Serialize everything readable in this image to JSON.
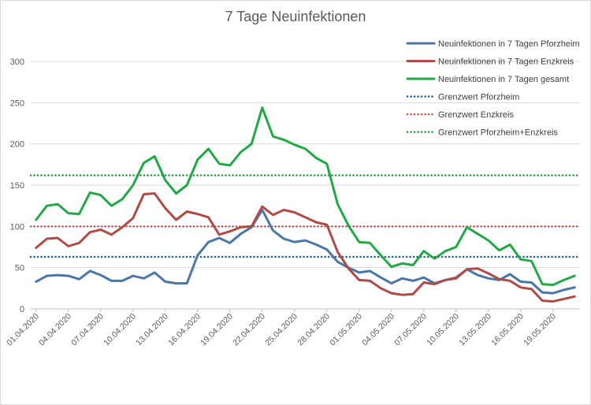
{
  "chart_data": {
    "type": "line",
    "title": "7 Tage Neuinfektionen",
    "ylim": [
      0,
      300
    ],
    "yticks": [
      0,
      50,
      100,
      150,
      200,
      250,
      300
    ],
    "grid": true,
    "legend_position": "top-right",
    "x": [
      "01.04.2020",
      "02.04.2020",
      "03.04.2020",
      "04.04.2020",
      "05.04.2020",
      "06.04.2020",
      "07.04.2020",
      "08.04.2020",
      "09.04.2020",
      "10.04.2020",
      "11.04.2020",
      "12.04.2020",
      "13.04.2020",
      "14.04.2020",
      "15.04.2020",
      "16.04.2020",
      "17.04.2020",
      "18.04.2020",
      "19.04.2020",
      "20.04.2020",
      "21.04.2020",
      "22.04.2020",
      "23.04.2020",
      "24.04.2020",
      "25.04.2020",
      "26.04.2020",
      "27.04.2020",
      "28.04.2020",
      "29.04.2020",
      "30.04.2020",
      "01.05.2020",
      "02.05.2020",
      "03.05.2020",
      "04.05.2020",
      "05.05.2020",
      "06.05.2020",
      "07.05.2020",
      "08.05.2020",
      "09.05.2020",
      "10.05.2020",
      "11.05.2020",
      "12.05.2020",
      "13.05.2020",
      "14.05.2020",
      "15.05.2020",
      "16.05.2020",
      "17.05.2020",
      "18.05.2020",
      "19.05.2020",
      "20.05.2020",
      "21.05.2020"
    ],
    "xticks": [
      "01.04.2020",
      "04.04.2020",
      "07.04.2020",
      "10.04.2020",
      "13.04.2020",
      "16.04.2020",
      "19.04.2020",
      "22.04.2020",
      "25.04.2020",
      "28.04.2020",
      "01.05.2020",
      "04.05.2020",
      "07.05.2020",
      "10.05.2020",
      "13.05.2020",
      "16.05.2020",
      "19.05.2020"
    ],
    "series": [
      {
        "name": "Neuinfektionen in 7 Tagen Pforzheim",
        "color": "#4a76a8",
        "values": [
          33,
          40,
          41,
          40,
          36,
          46,
          41,
          34,
          34,
          40,
          37,
          44,
          33,
          31,
          31,
          65,
          81,
          86,
          80,
          91,
          99,
          120,
          95,
          85,
          81,
          83,
          78,
          72,
          57,
          50,
          44,
          46,
          38,
          31,
          37,
          34,
          38,
          31,
          35,
          38,
          48,
          41,
          37,
          35,
          42,
          33,
          32,
          20,
          19,
          23,
          26
        ]
      },
      {
        "name": "Neuinfektionen in 7 Tagen Enzkreis",
        "color": "#b04a44",
        "values": [
          74,
          85,
          86,
          76,
          80,
          93,
          96,
          90,
          99,
          110,
          139,
          140,
          122,
          108,
          118,
          115,
          111,
          90,
          94,
          99,
          100,
          124,
          114,
          120,
          117,
          111,
          105,
          102,
          69,
          49,
          35,
          34,
          25,
          19,
          17,
          18,
          32,
          30,
          35,
          37,
          48,
          49,
          43,
          36,
          34,
          26,
          24,
          10,
          9,
          12,
          15
        ]
      },
      {
        "name": "Neuinfektionen in 7 Tagen gesamt",
        "color": "#22a846",
        "values": [
          108,
          125,
          127,
          116,
          115,
          141,
          138,
          125,
          133,
          150,
          177,
          185,
          156,
          140,
          150,
          181,
          194,
          176,
          174,
          190,
          200,
          244,
          209,
          205,
          199,
          194,
          183,
          176,
          127,
          101,
          81,
          80,
          65,
          51,
          55,
          53,
          70,
          61,
          70,
          75,
          99,
          91,
          83,
          71,
          78,
          60,
          58,
          30,
          29,
          35,
          40
        ]
      },
      {
        "name": "Grenzwert Pforzheim",
        "color": "#1f5f8f",
        "dotted": true,
        "constant": 63
      },
      {
        "name": "Grenzwert Enzkreis",
        "color": "#c0504d",
        "dotted": true,
        "constant": 100
      },
      {
        "name": "Grenzwert Pforzheim+Enzkreis",
        "color": "#1e9b3c",
        "dotted": true,
        "constant": 162
      }
    ]
  }
}
